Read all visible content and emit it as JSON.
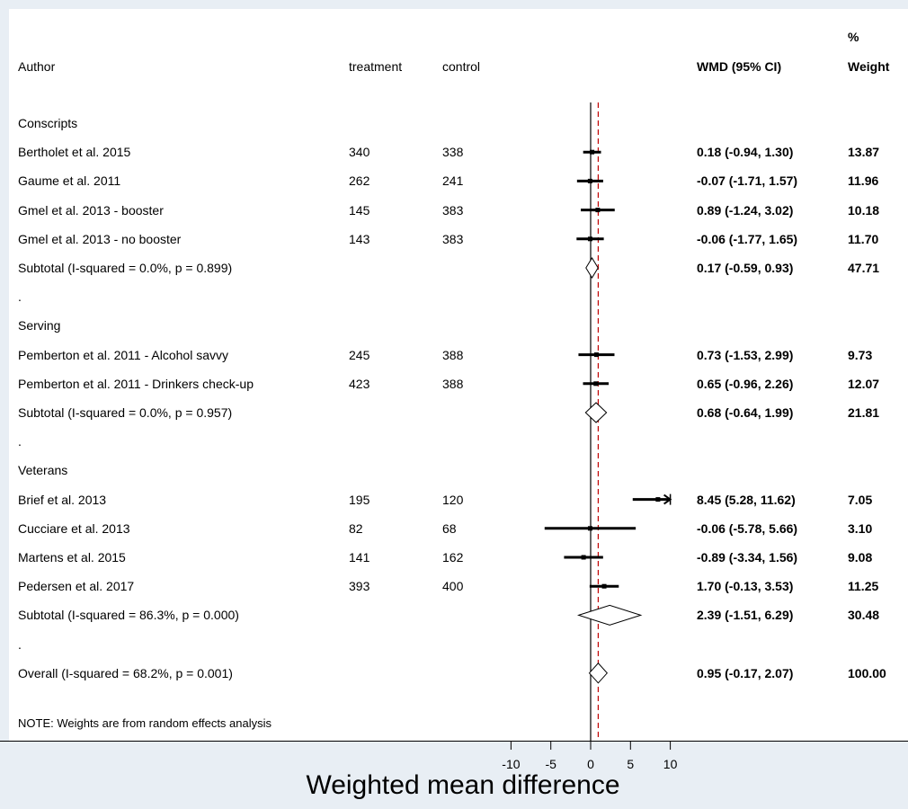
{
  "header": {
    "author": "Author",
    "treatment": "treatment",
    "control": "control",
    "wmd": "WMD (95% CI)",
    "weight_pct": "%",
    "weight": "Weight"
  },
  "rows": [
    {
      "kind": "group",
      "label": "Conscripts"
    },
    {
      "kind": "study",
      "label": "Bertholet et al. 2015",
      "treatment": "340",
      "control": "338",
      "wmd": 0.18,
      "lo": -0.94,
      "hi": 1.3,
      "ci_text": "0.18 (-0.94, 1.30)",
      "weight": "13.87"
    },
    {
      "kind": "study",
      "label": "Gaume et al. 2011",
      "treatment": "262",
      "control": "241",
      "wmd": -0.07,
      "lo": -1.71,
      "hi": 1.57,
      "ci_text": "-0.07 (-1.71, 1.57)",
      "weight": "11.96"
    },
    {
      "kind": "study",
      "label": "Gmel et al. 2013 - booster",
      "treatment": "145",
      "control": "383",
      "wmd": 0.89,
      "lo": -1.24,
      "hi": 3.02,
      "ci_text": "0.89 (-1.24, 3.02)",
      "weight": "10.18"
    },
    {
      "kind": "study",
      "label": "Gmel et al. 2013 - no booster",
      "treatment": "143",
      "control": "383",
      "wmd": -0.06,
      "lo": -1.77,
      "hi": 1.65,
      "ci_text": "-0.06 (-1.77, 1.65)",
      "weight": "11.70"
    },
    {
      "kind": "subtotal",
      "label": "Subtotal  (I-squared = 0.0%, p = 0.899)",
      "wmd": 0.17,
      "lo": -0.59,
      "hi": 0.93,
      "ci_text": "0.17 (-0.59, 0.93)",
      "weight": "47.71"
    },
    {
      "kind": "dot",
      "label": "."
    },
    {
      "kind": "group",
      "label": "Serving"
    },
    {
      "kind": "study",
      "label": "Pemberton et al. 2011 - Alcohol savvy",
      "treatment": "245",
      "control": "388",
      "wmd": 0.73,
      "lo": -1.53,
      "hi": 2.99,
      "ci_text": "0.73 (-1.53, 2.99)",
      "weight": "9.73"
    },
    {
      "kind": "study",
      "label": "Pemberton et al. 2011 - Drinkers check-up",
      "treatment": "423",
      "control": "388",
      "wmd": 0.65,
      "lo": -0.96,
      "hi": 2.26,
      "ci_text": "0.65 (-0.96, 2.26)",
      "weight": "12.07"
    },
    {
      "kind": "subtotal",
      "label": "Subtotal  (I-squared = 0.0%, p = 0.957)",
      "wmd": 0.68,
      "lo": -0.64,
      "hi": 1.99,
      "ci_text": "0.68 (-0.64, 1.99)",
      "weight": "21.81"
    },
    {
      "kind": "dot",
      "label": "."
    },
    {
      "kind": "group",
      "label": "Veterans"
    },
    {
      "kind": "study",
      "label": "Brief et al. 2013",
      "treatment": "195",
      "control": "120",
      "wmd": 8.45,
      "lo": 5.28,
      "hi": 11.62,
      "ci_text": "8.45 (5.28, 11.62)",
      "weight": "7.05"
    },
    {
      "kind": "study",
      "label": "Cucciare et al. 2013",
      "treatment": "82",
      "control": "68",
      "wmd": -0.06,
      "lo": -5.78,
      "hi": 5.66,
      "ci_text": "-0.06 (-5.78, 5.66)",
      "weight": "3.10"
    },
    {
      "kind": "study",
      "label": "Martens et al. 2015",
      "treatment": "141",
      "control": "162",
      "wmd": -0.89,
      "lo": -3.34,
      "hi": 1.56,
      "ci_text": "-0.89 (-3.34, 1.56)",
      "weight": "9.08"
    },
    {
      "kind": "study",
      "label": "Pedersen et al. 2017",
      "treatment": "393",
      "control": "400",
      "wmd": 1.7,
      "lo": -0.13,
      "hi": 3.53,
      "ci_text": "1.70 (-0.13, 3.53)",
      "weight": "11.25"
    },
    {
      "kind": "subtotal",
      "label": "Subtotal  (I-squared = 86.3%, p = 0.000)",
      "wmd": 2.39,
      "lo": -1.51,
      "hi": 6.29,
      "ci_text": "2.39 (-1.51, 6.29)",
      "weight": "30.48"
    },
    {
      "kind": "dot",
      "label": "."
    },
    {
      "kind": "subtotal",
      "label": "Overall  (I-squared = 68.2%, p = 0.001)",
      "wmd": 0.95,
      "lo": -0.17,
      "hi": 2.07,
      "ci_text": "0.95 (-0.17, 2.07)",
      "weight": "100.00"
    }
  ],
  "note": "NOTE: Weights are from random effects analysis",
  "chart_data": {
    "type": "forest",
    "xlabel": "Weighted mean difference",
    "xticks": [
      -10,
      -5,
      0,
      5,
      10
    ],
    "xlim": [
      -10,
      10
    ],
    "null_line": 0,
    "overall_line": 0.95,
    "colors": {
      "line": "#000000",
      "overall_line": "#c00000",
      "background": "#e8eef4"
    }
  }
}
